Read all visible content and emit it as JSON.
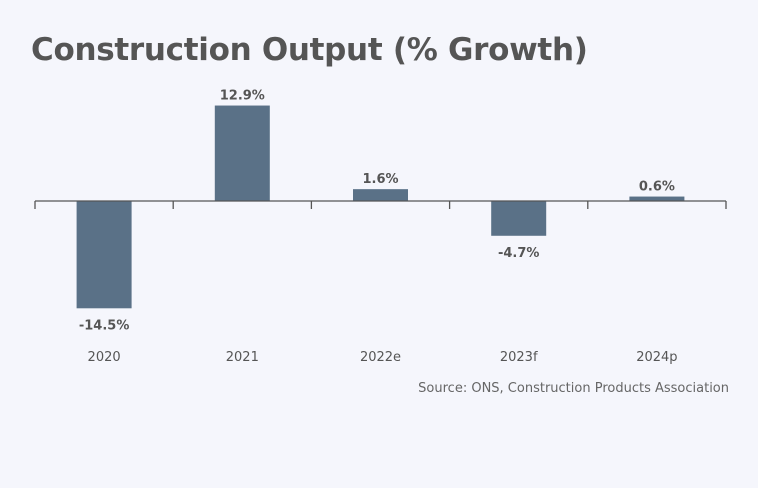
{
  "chart_data": {
    "type": "bar",
    "title": "Construction Output (% Growth)",
    "categories": [
      "2020",
      "2021",
      "2022e",
      "2023f",
      "2024p"
    ],
    "values": [
      -14.5,
      12.9,
      1.6,
      -4.7,
      0.6
    ],
    "data_labels": [
      "-14.5%",
      "12.9%",
      "1.6%",
      "-4.7%",
      "0.6%"
    ],
    "xlabel": "",
    "ylabel": "",
    "grid": false,
    "legend": "none",
    "bar_color": "#5a7187",
    "source": "Source: ONS, Construction Products Association"
  }
}
